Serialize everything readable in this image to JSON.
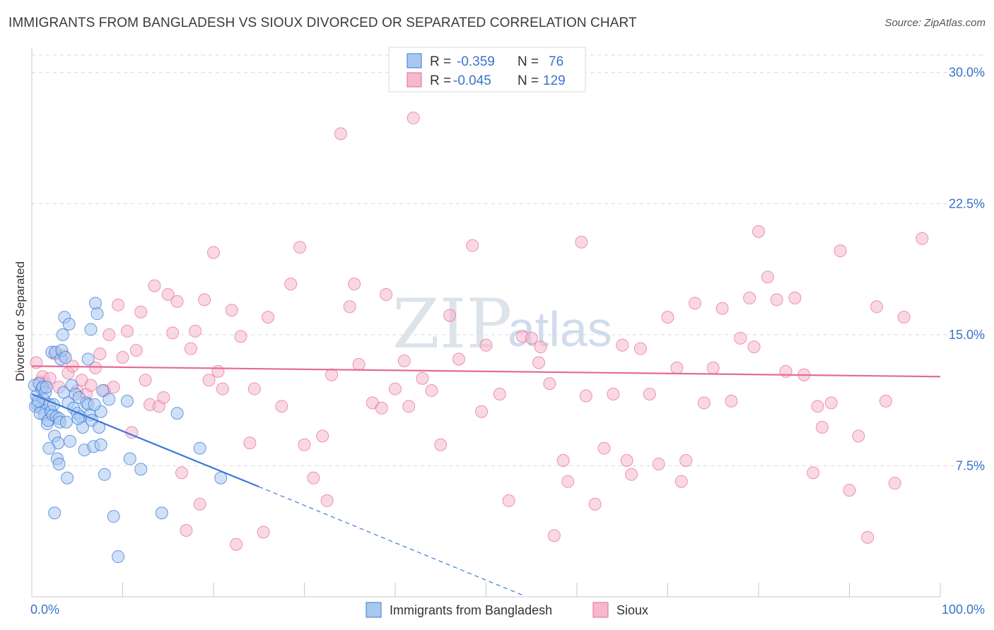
{
  "title": "IMMIGRANTS FROM BANGLADESH VS SIOUX DIVORCED OR SEPARATED CORRELATION CHART",
  "source": "Source: ZipAtlas.com",
  "watermark": {
    "zip": "ZIP",
    "atlas": "atlas"
  },
  "colors": {
    "blue": "#3b78d8",
    "blue_fill": "#a9c8f0",
    "pink": "#e56a97",
    "pink_fill": "#f5b8cc",
    "tick_text": "#3a73c9",
    "grid": "#d9d9d9"
  },
  "legend": {
    "rows": [
      {
        "r_label": "R =",
        "r_value": "-0.359",
        "n_label": "N =",
        "n_value": "76"
      },
      {
        "r_label": "R =",
        "r_value": "-0.045",
        "n_label": "N =",
        "n_value": "129"
      }
    ]
  },
  "bottom_legend": [
    "Immigrants from Bangladesh",
    "Sioux"
  ],
  "chart_data": {
    "type": "scatter",
    "title": "IMMIGRANTS FROM BANGLADESH VS SIOUX DIVORCED OR SEPARATED CORRELATION CHART",
    "xlabel": "",
    "ylabel": "Divorced or Separated",
    "xlim": [
      0,
      100
    ],
    "ylim": [
      0,
      31
    ],
    "x_tick_labels": [
      "0.0%",
      "100.0%"
    ],
    "y_ticks": [
      7.5,
      15.0,
      22.5,
      30.0
    ],
    "y_tick_labels": [
      "7.5%",
      "15.0%",
      "22.5%",
      "30.0%"
    ],
    "grid": true,
    "legend_position": "top-center",
    "series": [
      {
        "name": "Immigrants from Bangladesh",
        "color": "#3b78d8",
        "r": -0.359,
        "n": 76,
        "trend": {
          "x": [
            0,
            25
          ],
          "y": [
            11.6,
            6.3
          ],
          "dashed_to": [
            54,
            0.1
          ]
        },
        "points": [
          [
            0.3,
            12.1
          ],
          [
            0.5,
            11.5
          ],
          [
            0.6,
            11.0
          ],
          [
            0.8,
            12.2
          ],
          [
            1.0,
            10.8
          ],
          [
            1.1,
            11.9
          ],
          [
            1.2,
            12.0
          ],
          [
            1.3,
            11.3
          ],
          [
            1.4,
            10.4
          ],
          [
            1.5,
            11.7
          ],
          [
            0.4,
            10.9
          ],
          [
            0.7,
            11.2
          ],
          [
            0.9,
            10.5
          ],
          [
            1.6,
            12.0
          ],
          [
            1.7,
            9.9
          ],
          [
            1.8,
            10.1
          ],
          [
            2.0,
            11.0
          ],
          [
            2.1,
            10.6
          ],
          [
            2.2,
            14.0
          ],
          [
            2.3,
            10.4
          ],
          [
            2.4,
            11.0
          ],
          [
            2.5,
            9.2
          ],
          [
            2.6,
            14.0
          ],
          [
            2.7,
            10.3
          ],
          [
            2.8,
            7.9
          ],
          [
            2.9,
            8.8
          ],
          [
            3.0,
            10.2
          ],
          [
            3.1,
            10.0
          ],
          [
            3.2,
            13.6
          ],
          [
            3.3,
            14.1
          ],
          [
            3.4,
            15.0
          ],
          [
            3.5,
            11.7
          ],
          [
            3.6,
            16.0
          ],
          [
            3.7,
            13.7
          ],
          [
            3.8,
            10.0
          ],
          [
            3.9,
            6.8
          ],
          [
            4.0,
            11.1
          ],
          [
            4.2,
            8.9
          ],
          [
            4.4,
            12.1
          ],
          [
            4.6,
            10.8
          ],
          [
            4.8,
            11.6
          ],
          [
            5.0,
            10.5
          ],
          [
            5.2,
            11.4
          ],
          [
            5.4,
            10.3
          ],
          [
            5.6,
            9.7
          ],
          [
            5.8,
            8.4
          ],
          [
            6.0,
            11.1
          ],
          [
            6.2,
            11.0
          ],
          [
            6.4,
            10.4
          ],
          [
            6.6,
            10.1
          ],
          [
            6.8,
            8.6
          ],
          [
            7.0,
            16.8
          ],
          [
            7.2,
            16.2
          ],
          [
            7.4,
            9.7
          ],
          [
            7.6,
            10.6
          ],
          [
            7.8,
            11.8
          ],
          [
            8.0,
            7.0
          ],
          [
            8.5,
            11.3
          ],
          [
            9.0,
            4.6
          ],
          [
            10.5,
            11.2
          ],
          [
            12.0,
            7.3
          ],
          [
            16.0,
            10.5
          ],
          [
            18.5,
            8.5
          ],
          [
            20.8,
            6.8
          ],
          [
            6.2,
            13.6
          ],
          [
            6.5,
            15.3
          ],
          [
            7.6,
            8.7
          ],
          [
            4.1,
            15.6
          ],
          [
            2.5,
            4.8
          ],
          [
            9.5,
            2.3
          ],
          [
            3.0,
            7.6
          ],
          [
            1.9,
            8.5
          ],
          [
            5.1,
            10.2
          ],
          [
            6.9,
            11.0
          ],
          [
            10.8,
            7.9
          ],
          [
            14.3,
            4.8
          ]
        ]
      },
      {
        "name": "Sioux",
        "color": "#e56a97",
        "r": -0.045,
        "n": 129,
        "trend": {
          "x": [
            0,
            100
          ],
          "y": [
            13.2,
            12.6
          ]
        },
        "points": [
          [
            0.5,
            13.4
          ],
          [
            0.9,
            12.3
          ],
          [
            1.2,
            12.6
          ],
          [
            1.5,
            12.2
          ],
          [
            2.0,
            12.5
          ],
          [
            2.5,
            13.9
          ],
          [
            3.0,
            12.0
          ],
          [
            3.5,
            13.8
          ],
          [
            4.0,
            12.8
          ],
          [
            4.5,
            13.2
          ],
          [
            5.0,
            11.8
          ],
          [
            5.5,
            12.4
          ],
          [
            6.0,
            11.6
          ],
          [
            6.5,
            12.1
          ],
          [
            7.0,
            13.1
          ],
          [
            7.5,
            13.9
          ],
          [
            8.0,
            11.8
          ],
          [
            8.5,
            15.0
          ],
          [
            9.0,
            12.0
          ],
          [
            9.5,
            16.7
          ],
          [
            10.0,
            13.7
          ],
          [
            10.5,
            15.2
          ],
          [
            11.0,
            9.4
          ],
          [
            11.5,
            14.1
          ],
          [
            12.0,
            16.3
          ],
          [
            12.5,
            12.4
          ],
          [
            13.0,
            11.0
          ],
          [
            13.5,
            17.8
          ],
          [
            14.0,
            10.9
          ],
          [
            14.5,
            11.4
          ],
          [
            15.0,
            17.3
          ],
          [
            15.5,
            15.1
          ],
          [
            16.0,
            16.9
          ],
          [
            16.5,
            7.1
          ],
          [
            17.0,
            3.8
          ],
          [
            17.5,
            14.2
          ],
          [
            18.0,
            15.2
          ],
          [
            18.5,
            5.3
          ],
          [
            19.0,
            17.0
          ],
          [
            19.5,
            12.4
          ],
          [
            20.0,
            19.7
          ],
          [
            20.5,
            12.9
          ],
          [
            21.0,
            11.9
          ],
          [
            22.0,
            16.4
          ],
          [
            22.5,
            3.0
          ],
          [
            23.0,
            14.9
          ],
          [
            24.0,
            8.8
          ],
          [
            24.5,
            11.9
          ],
          [
            25.5,
            3.7
          ],
          [
            26.0,
            16.0
          ],
          [
            27.5,
            10.9
          ],
          [
            28.5,
            17.9
          ],
          [
            29.5,
            20.0
          ],
          [
            30.0,
            8.7
          ],
          [
            31.0,
            6.8
          ],
          [
            32.0,
            9.2
          ],
          [
            32.5,
            5.5
          ],
          [
            33.0,
            12.7
          ],
          [
            34.0,
            26.5
          ],
          [
            35.0,
            16.6
          ],
          [
            35.5,
            17.9
          ],
          [
            36.0,
            13.3
          ],
          [
            37.5,
            11.1
          ],
          [
            38.5,
            10.8
          ],
          [
            39.0,
            17.3
          ],
          [
            40.0,
            11.9
          ],
          [
            41.0,
            13.5
          ],
          [
            41.5,
            10.9
          ],
          [
            42.0,
            27.4
          ],
          [
            43.0,
            12.5
          ],
          [
            44.0,
            11.8
          ],
          [
            45.0,
            8.7
          ],
          [
            46.0,
            16.1
          ],
          [
            47.0,
            13.6
          ],
          [
            48.5,
            20.1
          ],
          [
            49.5,
            10.6
          ],
          [
            50.0,
            14.4
          ],
          [
            51.5,
            11.6
          ],
          [
            52.5,
            5.5
          ],
          [
            54.0,
            14.9
          ],
          [
            55.0,
            14.8
          ],
          [
            55.8,
            13.4
          ],
          [
            56.0,
            14.3
          ],
          [
            57.0,
            12.2
          ],
          [
            57.5,
            3.5
          ],
          [
            58.5,
            7.8
          ],
          [
            59.0,
            6.6
          ],
          [
            60.5,
            20.3
          ],
          [
            61.0,
            11.5
          ],
          [
            62.0,
            5.3
          ],
          [
            63.0,
            8.5
          ],
          [
            64.0,
            11.6
          ],
          [
            65.0,
            14.4
          ],
          [
            66.0,
            7.0
          ],
          [
            67.0,
            14.2
          ],
          [
            68.0,
            11.6
          ],
          [
            69.0,
            7.6
          ],
          [
            70.0,
            16.0
          ],
          [
            71.0,
            13.1
          ],
          [
            72.0,
            7.8
          ],
          [
            73.0,
            16.8
          ],
          [
            74.0,
            11.1
          ],
          [
            75.0,
            13.1
          ],
          [
            76.0,
            16.5
          ],
          [
            77.0,
            11.2
          ],
          [
            78.0,
            14.8
          ],
          [
            79.0,
            17.1
          ],
          [
            79.5,
            14.3
          ],
          [
            80.0,
            20.9
          ],
          [
            81.0,
            18.3
          ],
          [
            82.0,
            17.0
          ],
          [
            83.0,
            12.9
          ],
          [
            84.0,
            17.1
          ],
          [
            85.0,
            12.7
          ],
          [
            86.0,
            7.1
          ],
          [
            86.5,
            10.9
          ],
          [
            87.0,
            9.7
          ],
          [
            88.0,
            11.1
          ],
          [
            89.0,
            19.8
          ],
          [
            90.0,
            6.1
          ],
          [
            91.0,
            9.2
          ],
          [
            92.0,
            3.4
          ],
          [
            93.0,
            16.6
          ],
          [
            94.0,
            11.2
          ],
          [
            95.0,
            6.5
          ],
          [
            96.0,
            16.0
          ],
          [
            98.0,
            20.5
          ],
          [
            65.5,
            7.8
          ],
          [
            71.5,
            6.6
          ]
        ]
      }
    ]
  }
}
